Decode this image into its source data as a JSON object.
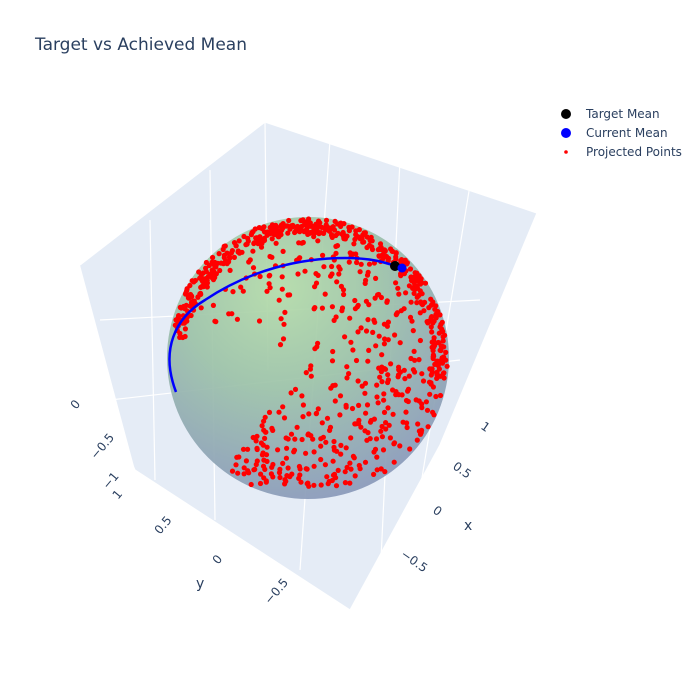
{
  "chart_data": {
    "type": "scatter",
    "title": "Target vs Achieved Mean",
    "legend_position": "top-right",
    "legend": [
      {
        "name": "Target Mean",
        "color": "#000000",
        "marker": "circle-large"
      },
      {
        "name": "Current Mean",
        "color": "#0000ff",
        "marker": "circle-large"
      },
      {
        "name": "Projected Points",
        "color": "#ff0000",
        "marker": "circle-small"
      }
    ],
    "axes": {
      "x": {
        "title": "x",
        "ticks": [
          "−0.5",
          "0",
          "0.5",
          "1"
        ],
        "range": [
          -1,
          1
        ]
      },
      "y": {
        "title": "y",
        "ticks": [
          "1",
          "0.5",
          "0",
          "−0.5"
        ],
        "range": [
          -1,
          1
        ]
      },
      "z": {
        "title": "",
        "ticks": [
          "0",
          "−0.5",
          "−1"
        ],
        "range": [
          -1,
          1
        ]
      }
    },
    "sphere": {
      "radius": 1,
      "colors": [
        "#a8d5a0",
        "#8b9dc3"
      ]
    },
    "target_mean": {
      "color": "#000000"
    },
    "current_mean": {
      "color": "#0000ff"
    },
    "projected_points": {
      "color": "#ff0000",
      "count": 900
    }
  }
}
